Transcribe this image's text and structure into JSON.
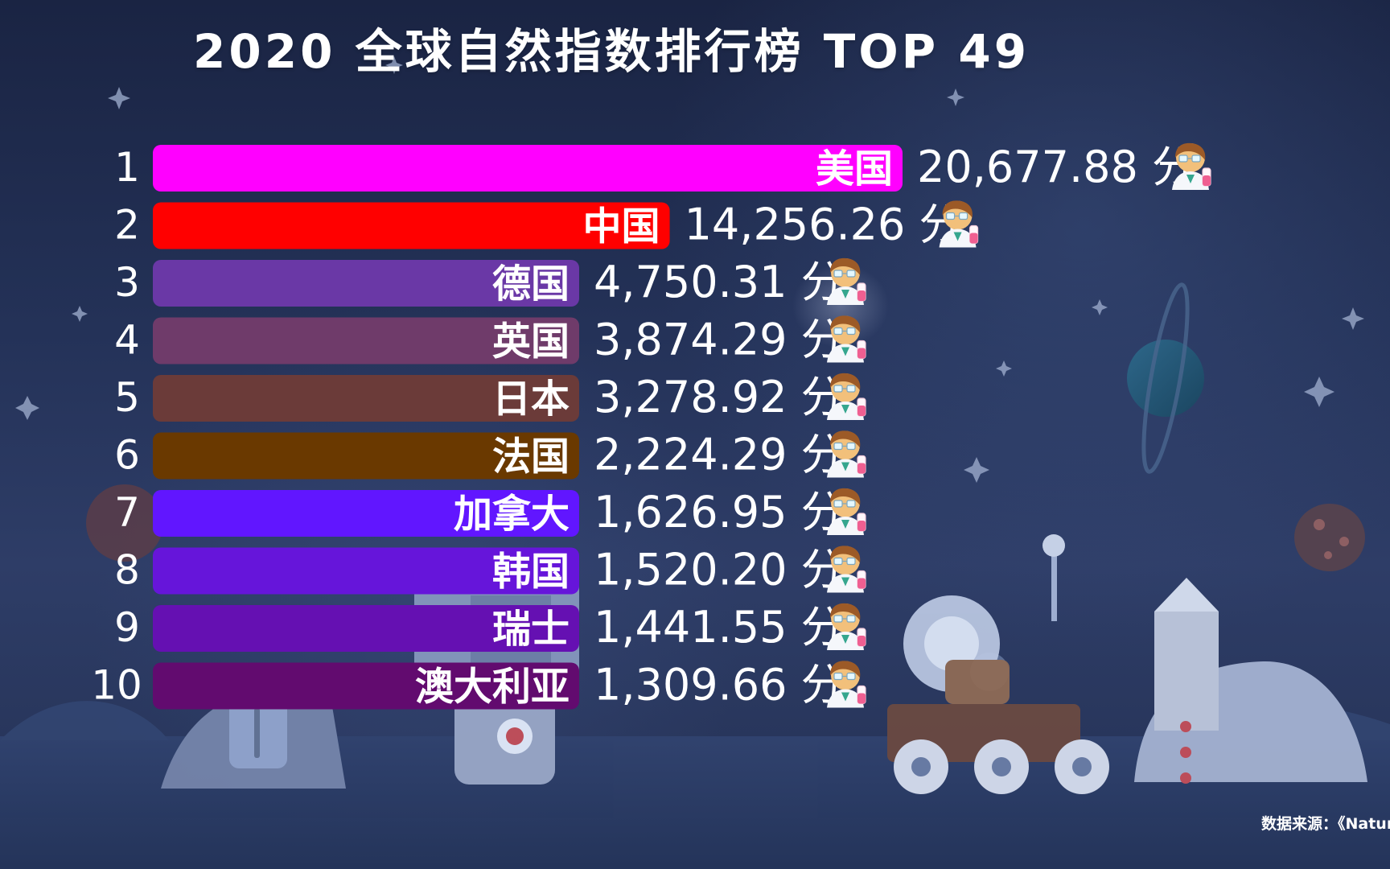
{
  "title": "2020 全球自然指数排行榜 TOP 49",
  "source": "数据来源：《Nature",
  "chart_data": {
    "type": "bar",
    "orientation": "horizontal",
    "categories": [
      "美国",
      "中国",
      "德国",
      "英国",
      "日本",
      "法国",
      "加拿大",
      "韩国",
      "瑞士",
      "澳大利亚"
    ],
    "ranks": [
      "1",
      "2",
      "3",
      "4",
      "5",
      "6",
      "7",
      "8",
      "9",
      "10"
    ],
    "values": [
      20677.88,
      14256.26,
      4750.31,
      3874.29,
      3278.92,
      2224.29,
      1626.95,
      1520.2,
      1441.55,
      1309.66
    ],
    "value_labels": [
      "20,677.88 分",
      "14,256.26 分",
      "4,750.31 分",
      "3,874.29 分",
      "3,278.92 分",
      "2,224.29 分",
      "1,626.95 分",
      "1,520.20 分",
      "1,441.55 分",
      "1,309.66 分"
    ],
    "colors": [
      "#ff00ff",
      "#ff0000",
      "#6a38a6",
      "#6f3b6a",
      "#6b3b39",
      "#6a3900",
      "#6116ff",
      "#6615da",
      "#6510b2",
      "#620b6f"
    ],
    "icon": "scientist-icon",
    "grid": false,
    "legend": false
  }
}
